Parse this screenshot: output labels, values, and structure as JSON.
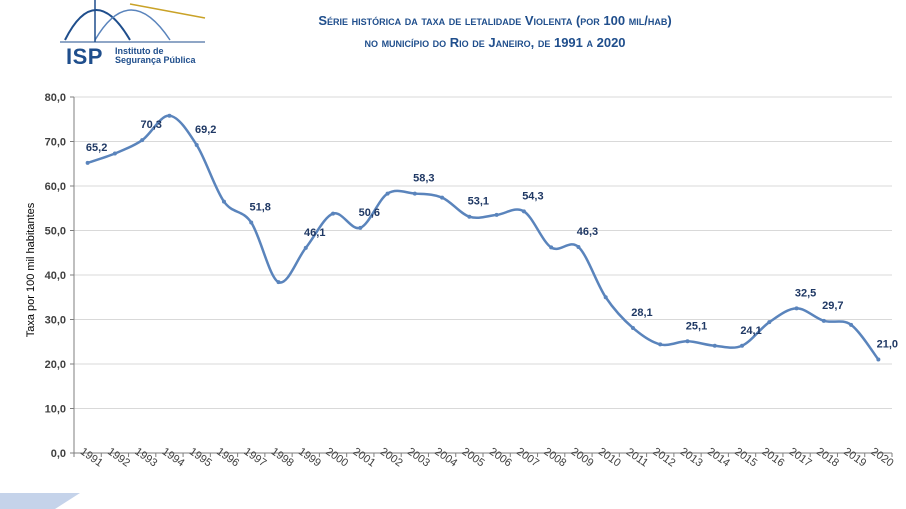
{
  "logo": {
    "acronym": "ISP",
    "name_line1": "Instituto de",
    "name_line2": "Segurança Pública"
  },
  "colors": {
    "series": "#5a84bc",
    "title": "#1f4e8c",
    "labels": "#1f3864",
    "grid": "#d9d9d9"
  },
  "chart_data": {
    "type": "line",
    "title_line1": "Série histórica da taxa de letalidade Violenta (por 100 mil/hab)",
    "title_line2": "no município do Rio de Janeiro, de 1991 a 2020",
    "xlabel": "",
    "ylabel": "Taxa por 100 mil habitantes",
    "ylim": [
      0,
      80
    ],
    "yticks": [
      "0,0",
      "10,0",
      "20,0",
      "30,0",
      "40,0",
      "50,0",
      "60,0",
      "70,0",
      "80,0"
    ],
    "grid": true,
    "categories": [
      "1991",
      "1992",
      "1993",
      "1994",
      "1995",
      "1996",
      "1997",
      "1998",
      "1999",
      "2000",
      "2001",
      "2002",
      "2003",
      "2004",
      "2005",
      "2006",
      "2007",
      "2008",
      "2009",
      "2010",
      "2011",
      "2012",
      "2013",
      "2014",
      "2015",
      "2016",
      "2017",
      "2018",
      "2019",
      "2020"
    ],
    "series": [
      {
        "values": [
          65.2,
          67.3,
          70.3,
          75.8,
          69.2,
          56.5,
          51.8,
          38.4,
          46.1,
          53.8,
          50.6,
          58.3,
          58.3,
          57.4,
          53.1,
          53.5,
          54.3,
          46.2,
          46.3,
          35.0,
          28.1,
          24.4,
          25.1,
          24.1,
          24.1,
          29.4,
          32.5,
          29.7,
          28.8,
          21.0
        ],
        "labels": [
          "65,2",
          "",
          "70,3",
          "",
          "69,2",
          "",
          "51,8",
          "",
          "46,1",
          "",
          "50,6",
          "",
          "58,3",
          "",
          "53,1",
          "",
          "54,3",
          "",
          "46,3",
          "",
          "28,1",
          "",
          "25,1",
          "",
          "24,1",
          "",
          "32,5",
          "29,7",
          "",
          "21,0"
        ]
      }
    ]
  }
}
